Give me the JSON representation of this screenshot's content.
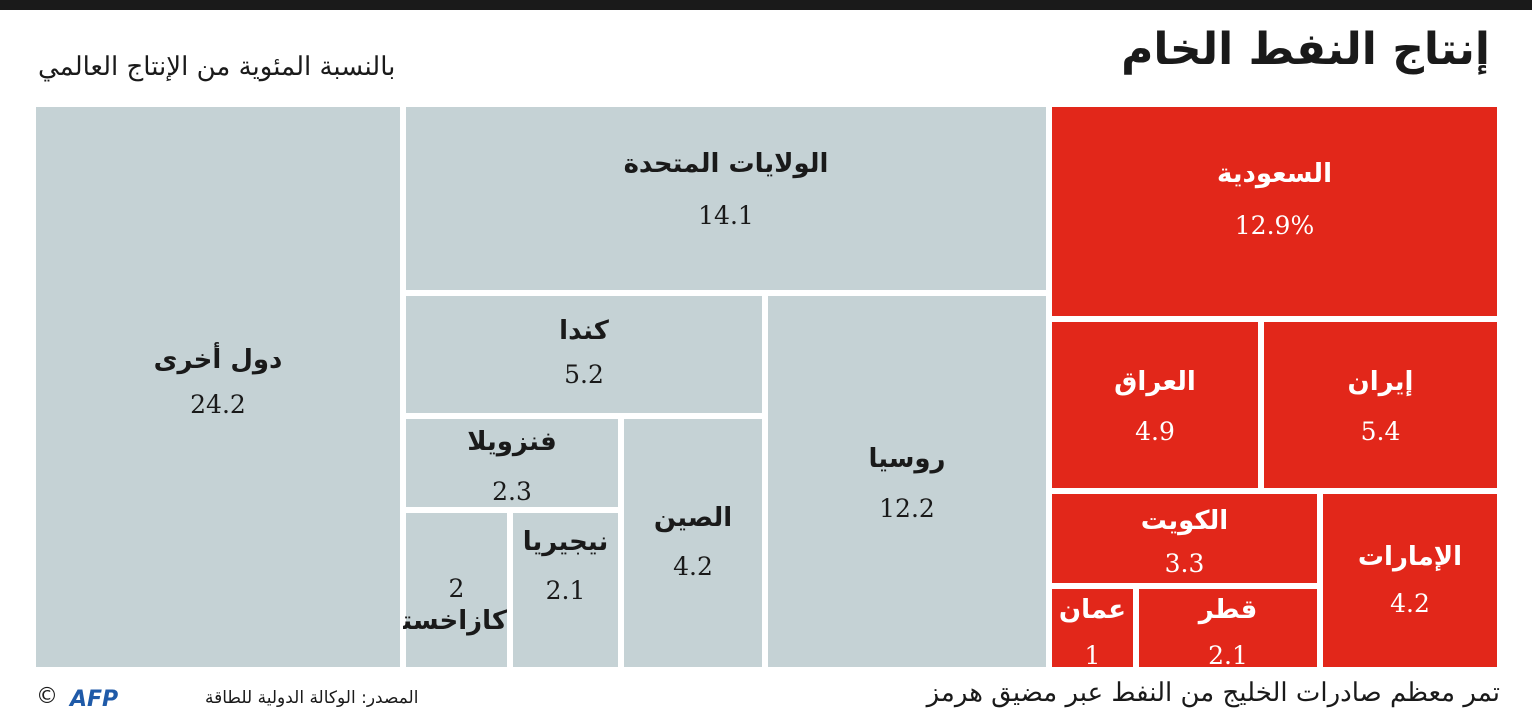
{
  "header": {
    "title": "إنتاج النفط الخام",
    "subtitle": "بالنسبة المئوية من الإنتاج العالمي"
  },
  "footer": {
    "source": "المصدر: الوكالة الدولية للطاقة",
    "logo_text": "AFP",
    "copyright": "©",
    "note": "تمر معظم صادرات الخليج من النفط عبر مضيق هرمز"
  },
  "colors": {
    "gulf": "#e2271a",
    "other": "#c5d2d5",
    "afp_logo": "#1f5aa8"
  },
  "chart_data": {
    "type": "treemap",
    "unit": "%",
    "series": [
      {
        "label": "السعودية",
        "value": 12.9,
        "value_text": "12.9%",
        "group": "gulf"
      },
      {
        "label": "إيران",
        "value": 5.4,
        "value_text": "5.4",
        "group": "gulf"
      },
      {
        "label": "العراق",
        "value": 4.9,
        "value_text": "4.9",
        "group": "gulf"
      },
      {
        "label": "الإمارات",
        "value": 4.2,
        "value_text": "4.2",
        "group": "gulf"
      },
      {
        "label": "الكويت",
        "value": 3.3,
        "value_text": "3.3",
        "group": "gulf"
      },
      {
        "label": "قطر",
        "value": 2.1,
        "value_text": "2.1",
        "group": "gulf"
      },
      {
        "label": "عمان",
        "value": 1,
        "value_text": "1",
        "group": "gulf"
      },
      {
        "label": "الولايات المتحدة",
        "value": 14.1,
        "value_text": "14.1",
        "group": "other"
      },
      {
        "label": "روسيا",
        "value": 12.2,
        "value_text": "12.2",
        "group": "other"
      },
      {
        "label": "كندا",
        "value": 5.2,
        "value_text": "5.2",
        "group": "other"
      },
      {
        "label": "الصين",
        "value": 4.2,
        "value_text": "4.2",
        "group": "other"
      },
      {
        "label": "فنزويلا",
        "value": 2.3,
        "value_text": "2.3",
        "group": "other"
      },
      {
        "label": "نيجيريا",
        "value": 2.1,
        "value_text": "2.1",
        "group": "other"
      },
      {
        "label": "كازاخستان",
        "value": 2,
        "value_text": "2",
        "group": "other"
      },
      {
        "label": "دول أخرى",
        "value": 24.2,
        "value_text": "24.2",
        "group": "other"
      }
    ]
  }
}
